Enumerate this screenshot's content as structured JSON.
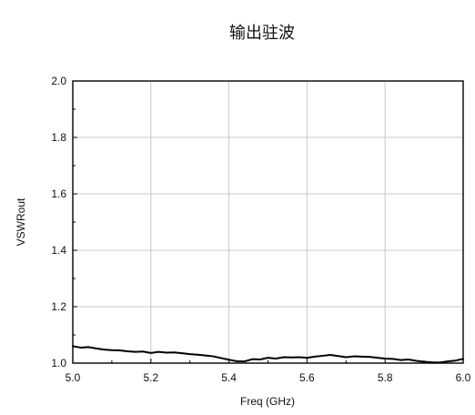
{
  "chart_data": {
    "type": "line",
    "title": "输出驻波",
    "xlabel": "Freq (GHz)",
    "ylabel": "VSWRout",
    "xlim": [
      5.0,
      6.0
    ],
    "ylim": [
      1.0,
      2.0
    ],
    "xticks": [
      "5.0",
      "5.2",
      "5.4",
      "5.6",
      "5.8",
      "6.0"
    ],
    "yticks": [
      "1.0",
      "1.2",
      "1.4",
      "1.6",
      "1.8",
      "2.0"
    ],
    "grid": true,
    "series": [
      {
        "color": "#000000",
        "points": [
          [
            5.0,
            1.06
          ],
          [
            5.02,
            1.055
          ],
          [
            5.04,
            1.057
          ],
          [
            5.06,
            1.052
          ],
          [
            5.08,
            1.048
          ],
          [
            5.1,
            1.046
          ],
          [
            5.12,
            1.045
          ],
          [
            5.14,
            1.042
          ],
          [
            5.16,
            1.04
          ],
          [
            5.18,
            1.041
          ],
          [
            5.2,
            1.036
          ],
          [
            5.22,
            1.04
          ],
          [
            5.24,
            1.037
          ],
          [
            5.26,
            1.038
          ],
          [
            5.28,
            1.035
          ],
          [
            5.3,
            1.032
          ],
          [
            5.32,
            1.03
          ],
          [
            5.34,
            1.027
          ],
          [
            5.36,
            1.024
          ],
          [
            5.38,
            1.018
          ],
          [
            5.4,
            1.012
          ],
          [
            5.42,
            1.007
          ],
          [
            5.44,
            1.006
          ],
          [
            5.46,
            1.014
          ],
          [
            5.48,
            1.013
          ],
          [
            5.5,
            1.019
          ],
          [
            5.52,
            1.016
          ],
          [
            5.54,
            1.021
          ],
          [
            5.56,
            1.02
          ],
          [
            5.58,
            1.021
          ],
          [
            5.6,
            1.019
          ],
          [
            5.62,
            1.023
          ],
          [
            5.64,
            1.026
          ],
          [
            5.66,
            1.029
          ],
          [
            5.68,
            1.025
          ],
          [
            5.7,
            1.021
          ],
          [
            5.72,
            1.024
          ],
          [
            5.74,
            1.023
          ],
          [
            5.76,
            1.022
          ],
          [
            5.78,
            1.019
          ],
          [
            5.8,
            1.016
          ],
          [
            5.82,
            1.015
          ],
          [
            5.84,
            1.011
          ],
          [
            5.86,
            1.013
          ],
          [
            5.88,
            1.008
          ],
          [
            5.9,
            1.005
          ],
          [
            5.92,
            1.003
          ],
          [
            5.94,
            1.002
          ],
          [
            5.96,
            1.006
          ],
          [
            5.98,
            1.009
          ],
          [
            6.0,
            1.015
          ]
        ]
      }
    ]
  }
}
